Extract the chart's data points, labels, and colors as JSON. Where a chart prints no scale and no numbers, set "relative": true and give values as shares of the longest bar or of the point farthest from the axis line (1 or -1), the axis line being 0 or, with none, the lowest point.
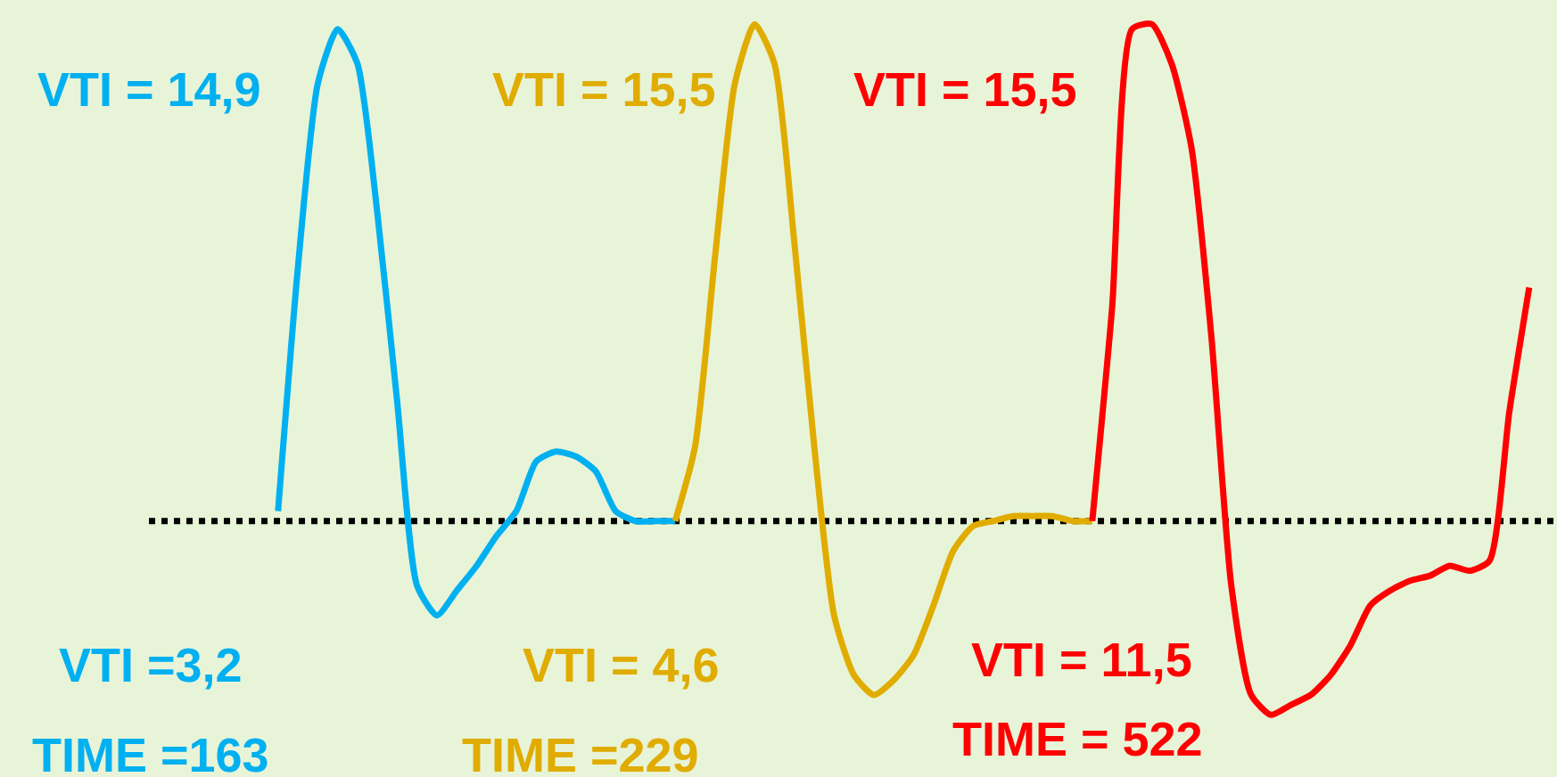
{
  "chart_data": {
    "type": "line",
    "relative": true,
    "categories": [
      null,
      null,
      null,
      null,
      null,
      null,
      null,
      null,
      null,
      null,
      null,
      null,
      null,
      null,
      null,
      null,
      null,
      null,
      null,
      null,
      null,
      null,
      null,
      null,
      null,
      null,
      null,
      null,
      null,
      null,
      null,
      null,
      null,
      null,
      null,
      null,
      null,
      null,
      null,
      null,
      null,
      null,
      null,
      null,
      null,
      null,
      null,
      null,
      null,
      null,
      null,
      null,
      null,
      null,
      null,
      null,
      null,
      null,
      null,
      null,
      null,
      null,
      null,
      null,
      null,
      null,
      null,
      null,
      null,
      null,
      null
    ],
    "series": [
      {
        "color": "#00b0f0",
        "values": [
          null,
          null,
          null,
          null,
          null,
          null,
          0.02,
          0.51,
          0.88,
          0.99,
          0.92,
          0.62,
          0.24,
          -0.13,
          -0.19,
          -0.14,
          -0.09,
          -0.03,
          0.02,
          0.12,
          0.14,
          0.13,
          0.1,
          0.02,
          0,
          0,
          0,
          null,
          null,
          null,
          null,
          null,
          null,
          null,
          null,
          null,
          null,
          null,
          null,
          null,
          null,
          null,
          null,
          null,
          null,
          null,
          null,
          null,
          null,
          null,
          null,
          null,
          null,
          null,
          null,
          null,
          null,
          null,
          null,
          null,
          null,
          null,
          null,
          null,
          null,
          null,
          null,
          null,
          null,
          null,
          null
        ]
      },
      {
        "color": "#e0ac00",
        "values": [
          null,
          null,
          null,
          null,
          null,
          null,
          null,
          null,
          null,
          null,
          null,
          null,
          null,
          null,
          null,
          null,
          null,
          null,
          null,
          null,
          null,
          null,
          null,
          null,
          null,
          null,
          0,
          0.15,
          0.53,
          0.88,
          1,
          0.92,
          0.56,
          0.15,
          -0.19,
          -0.31,
          -0.35,
          -0.32,
          -0.27,
          -0.17,
          -0.06,
          -0.01,
          0,
          0.01,
          0.01,
          0.01,
          0,
          0,
          null,
          null,
          null,
          null,
          null,
          null,
          null,
          null,
          null,
          null,
          null,
          null,
          null,
          null,
          null,
          null,
          null,
          null,
          null,
          null,
          null,
          null,
          null
        ]
      },
      {
        "color": "#ff0000",
        "values": [
          null,
          null,
          null,
          null,
          null,
          null,
          null,
          null,
          null,
          null,
          null,
          null,
          null,
          null,
          null,
          null,
          null,
          null,
          null,
          null,
          null,
          null,
          null,
          null,
          null,
          null,
          null,
          null,
          null,
          null,
          null,
          null,
          null,
          null,
          null,
          null,
          null,
          null,
          null,
          null,
          null,
          null,
          null,
          null,
          null,
          null,
          null,
          0,
          0.43,
          0.99,
          1,
          0.92,
          0.75,
          0.37,
          -0.13,
          -0.35,
          -0.39,
          -0.37,
          -0.35,
          -0.31,
          -0.25,
          -0.17,
          -0.14,
          -0.12,
          -0.11,
          -0.09,
          -0.1,
          -0.08,
          0.22,
          0.47,
          null
        ]
      }
    ],
    "ref_lines": [
      {
        "axis": "y",
        "value": 0,
        "color": "#000000",
        "line_style": "dotted"
      }
    ],
    "annotations": [
      "VTI = 14,9",
      "VTI = 15,5",
      "VTI = 15,5",
      "VTI =3,2",
      "TIME =163",
      "VTI = 4,6",
      "TIME =229",
      "VTI = 11,5",
      "TIME = 522"
    ]
  }
}
